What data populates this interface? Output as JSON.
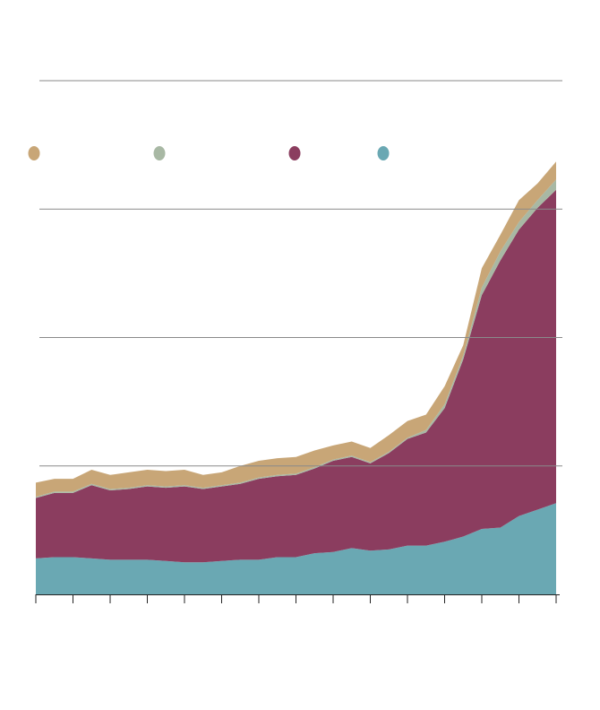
{
  "chart_data": {
    "type": "stacked-area",
    "x": [
      0,
      2,
      4,
      6,
      8,
      10,
      12,
      14,
      16,
      18,
      20,
      22,
      24,
      26,
      28,
      30,
      32,
      34,
      36,
      38,
      40,
      42,
      44,
      46,
      48,
      50,
      52,
      54,
      56
    ],
    "xlim": [
      0,
      56
    ],
    "xticks": [
      0,
      4,
      8,
      12,
      16,
      20,
      24,
      28,
      32,
      36,
      40,
      44,
      48,
      52,
      56
    ],
    "ylim": [
      0,
      4
    ],
    "yticks": [
      1,
      2,
      3,
      4
    ],
    "grid": true,
    "series": [
      {
        "color": "#6aa8b3",
        "values": [
          0.28,
          0.29,
          0.29,
          0.28,
          0.27,
          0.27,
          0.27,
          0.26,
          0.25,
          0.25,
          0.26,
          0.27,
          0.27,
          0.29,
          0.29,
          0.32,
          0.33,
          0.36,
          0.34,
          0.35,
          0.38,
          0.38,
          0.41,
          0.45,
          0.51,
          0.52,
          0.61,
          0.66,
          0.71
        ]
      },
      {
        "color": "#8b3d5f",
        "values": [
          0.47,
          0.5,
          0.5,
          0.57,
          0.54,
          0.55,
          0.57,
          0.57,
          0.59,
          0.57,
          0.58,
          0.59,
          0.63,
          0.63,
          0.64,
          0.66,
          0.71,
          0.71,
          0.68,
          0.75,
          0.83,
          0.88,
          1.04,
          1.38,
          1.82,
          2.08,
          2.23,
          2.35,
          2.44
        ]
      },
      {
        "color": "#a8b8a4",
        "values": [
          0.01,
          0.01,
          0.01,
          0.01,
          0.01,
          0.01,
          0.01,
          0.01,
          0.01,
          0.01,
          0.01,
          0.01,
          0.01,
          0.01,
          0.01,
          0.01,
          0.01,
          0.01,
          0.01,
          0.01,
          0.01,
          0.02,
          0.03,
          0.03,
          0.06,
          0.07,
          0.06,
          0.06,
          0.08
        ]
      },
      {
        "color": "#c8a677",
        "values": [
          0.11,
          0.1,
          0.1,
          0.11,
          0.11,
          0.12,
          0.12,
          0.12,
          0.12,
          0.1,
          0.1,
          0.13,
          0.13,
          0.13,
          0.13,
          0.13,
          0.11,
          0.11,
          0.11,
          0.13,
          0.13,
          0.12,
          0.14,
          0.08,
          0.15,
          0.13,
          0.17,
          0.13,
          0.14
        ]
      }
    ]
  }
}
